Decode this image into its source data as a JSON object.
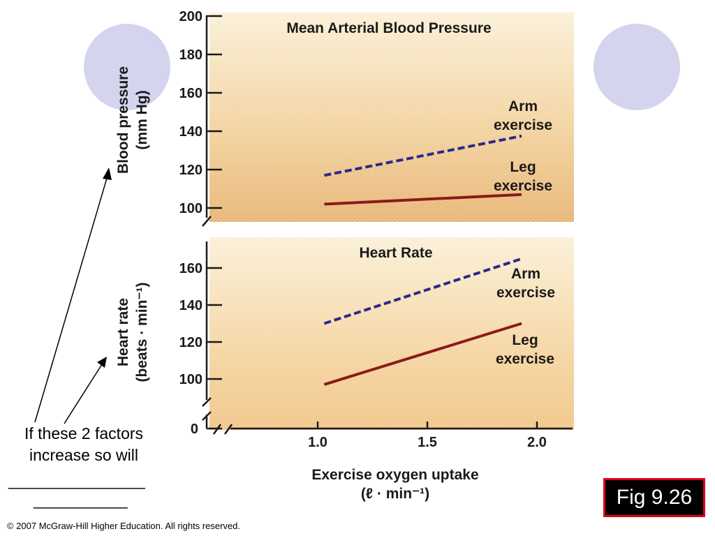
{
  "slide": {
    "note_line1": "If these 2 factors",
    "note_line2": "increase so will",
    "blank_line1": "________________",
    "blank_line2": "___________",
    "fig_label": "Fig 9.26",
    "copyright": "© 2007 McGraw-Hill Higher Education. All rights reserved.",
    "accent_colors": {
      "decor_circle": "#d4d4ee",
      "fig_label_border": "#e0001a",
      "fig_label_bg": "#000000"
    }
  },
  "chart_data": [
    {
      "type": "line",
      "title": "Mean Arterial Blood Pressure",
      "ylabel_line1": "Blood pressure",
      "ylabel_line2": "(mm Hg)",
      "y_ticks": [
        100,
        120,
        140,
        160,
        180,
        200
      ],
      "ylim": [
        100,
        200
      ],
      "xlim": [
        0.5,
        2.2
      ],
      "series": [
        {
          "name": "Arm exercise",
          "label_line1": "Arm",
          "label_line2": "exercise",
          "x": [
            1.03,
            1.93
          ],
          "values": [
            117,
            137.5
          ],
          "style": "dashed",
          "color": "#2a2a88"
        },
        {
          "name": "Leg exercise",
          "label_line1": "Leg",
          "label_line2": "exercise",
          "x": [
            1.03,
            1.93
          ],
          "values": [
            102,
            107
          ],
          "style": "solid",
          "color": "#8b1a1a"
        }
      ]
    },
    {
      "type": "line",
      "title": "Heart Rate",
      "ylabel_line1": "Heart rate",
      "ylabel_line2": "(beats · min⁻¹)",
      "y_ticks": [
        100,
        120,
        140,
        160
      ],
      "zero_tick": "0",
      "ylim": [
        100,
        160
      ],
      "xlabel_line1": "Exercise oxygen uptake",
      "xlabel_line2": "(ℓ · min⁻¹)",
      "x_ticks": [
        "1.0",
        "1.5",
        "2.0"
      ],
      "x_tick_values": [
        1.0,
        1.5,
        2.0
      ],
      "xlim": [
        0.5,
        2.2
      ],
      "series": [
        {
          "name": "Arm exercise",
          "label_line1": "Arm",
          "label_line2": "exercise",
          "x": [
            1.03,
            1.93
          ],
          "values": [
            130,
            165
          ],
          "style": "dashed",
          "color": "#2a2a88"
        },
        {
          "name": "Leg exercise",
          "label_line1": "Leg",
          "label_line2": "exercise",
          "x": [
            1.03,
            1.93
          ],
          "values": [
            97,
            130
          ],
          "style": "solid",
          "color": "#8b1a1a"
        }
      ]
    }
  ]
}
